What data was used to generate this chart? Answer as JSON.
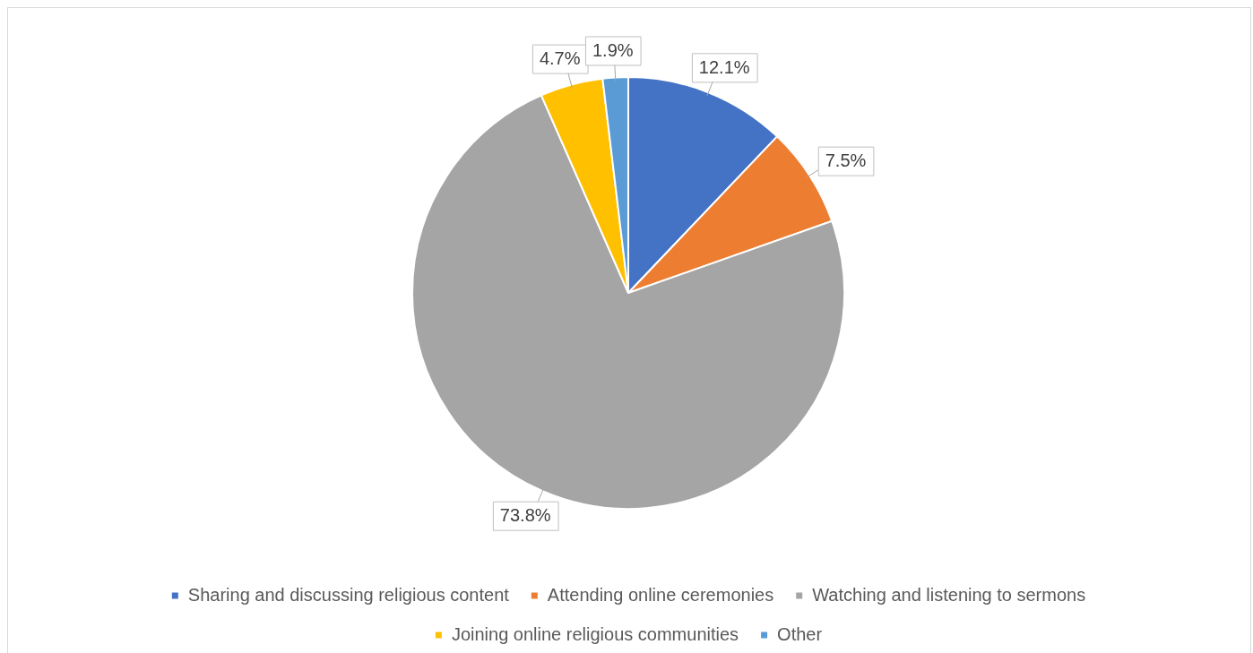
{
  "chart_data": {
    "type": "pie",
    "categories": [
      "Sharing and discussing religious content",
      "Attending online ceremonies",
      "Watching and listening to sermons",
      "Joining online religious communities",
      "Other"
    ],
    "values": [
      12.1,
      7.5,
      73.8,
      4.7,
      1.9
    ],
    "value_labels": [
      "12.1%",
      "7.5%",
      "73.8%",
      "4.7%",
      "1.9%"
    ],
    "colors": [
      "#4472c4",
      "#ed7d31",
      "#a5a5a5",
      "#ffc000",
      "#5b9bd5"
    ],
    "legend": "bottom"
  }
}
